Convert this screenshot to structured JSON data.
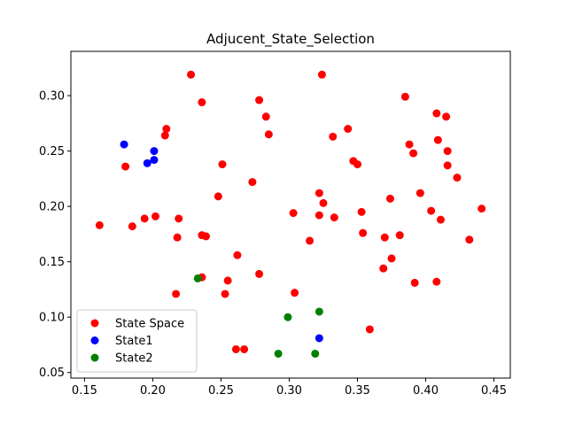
{
  "chart_data": {
    "type": "scatter",
    "title": "Adjucent_State_Selection",
    "xlabel": "",
    "ylabel": "",
    "xlim": [
      0.14,
      0.462
    ],
    "ylim": [
      0.045,
      0.34
    ],
    "xticks": [
      0.15,
      0.2,
      0.25,
      0.3,
      0.35,
      0.4,
      0.45
    ],
    "xtick_labels": [
      "0.15",
      "0.20",
      "0.25",
      "0.30",
      "0.35",
      "0.40",
      "0.45"
    ],
    "yticks": [
      0.05,
      0.1,
      0.15,
      0.2,
      0.25,
      0.3
    ],
    "ytick_labels": [
      "0.05",
      "0.10",
      "0.15",
      "0.20",
      "0.25",
      "0.30"
    ],
    "grid": false,
    "legend_position": "bottom-left",
    "series": [
      {
        "name": "State Space",
        "color": "#ff0000",
        "points": [
          [
            0.161,
            0.183
          ],
          [
            0.18,
            0.236
          ],
          [
            0.185,
            0.182
          ],
          [
            0.194,
            0.189
          ],
          [
            0.202,
            0.191
          ],
          [
            0.209,
            0.264
          ],
          [
            0.21,
            0.27
          ],
          [
            0.218,
            0.172
          ],
          [
            0.219,
            0.189
          ],
          [
            0.217,
            0.121
          ],
          [
            0.228,
            0.319
          ],
          [
            0.236,
            0.294
          ],
          [
            0.236,
            0.174
          ],
          [
            0.239,
            0.173
          ],
          [
            0.236,
            0.136
          ],
          [
            0.248,
            0.209
          ],
          [
            0.251,
            0.238
          ],
          [
            0.253,
            0.121
          ],
          [
            0.255,
            0.133
          ],
          [
            0.262,
            0.156
          ],
          [
            0.261,
            0.071
          ],
          [
            0.267,
            0.071
          ],
          [
            0.273,
            0.222
          ],
          [
            0.278,
            0.296
          ],
          [
            0.278,
            0.139
          ],
          [
            0.283,
            0.281
          ],
          [
            0.285,
            0.265
          ],
          [
            0.303,
            0.194
          ],
          [
            0.304,
            0.122
          ],
          [
            0.315,
            0.169
          ],
          [
            0.322,
            0.212
          ],
          [
            0.322,
            0.192
          ],
          [
            0.324,
            0.319
          ],
          [
            0.325,
            0.203
          ],
          [
            0.332,
            0.263
          ],
          [
            0.333,
            0.19
          ],
          [
            0.343,
            0.27
          ],
          [
            0.347,
            0.241
          ],
          [
            0.35,
            0.238
          ],
          [
            0.353,
            0.195
          ],
          [
            0.354,
            0.176
          ],
          [
            0.359,
            0.089
          ],
          [
            0.369,
            0.144
          ],
          [
            0.37,
            0.172
          ],
          [
            0.374,
            0.207
          ],
          [
            0.375,
            0.153
          ],
          [
            0.381,
            0.174
          ],
          [
            0.385,
            0.299
          ],
          [
            0.388,
            0.256
          ],
          [
            0.391,
            0.248
          ],
          [
            0.392,
            0.131
          ],
          [
            0.396,
            0.212
          ],
          [
            0.404,
            0.196
          ],
          [
            0.408,
            0.284
          ],
          [
            0.408,
            0.132
          ],
          [
            0.409,
            0.26
          ],
          [
            0.411,
            0.188
          ],
          [
            0.415,
            0.281
          ],
          [
            0.416,
            0.25
          ],
          [
            0.416,
            0.237
          ],
          [
            0.423,
            0.226
          ],
          [
            0.432,
            0.17
          ],
          [
            0.441,
            0.198
          ]
        ]
      },
      {
        "name": "State1",
        "color": "#0000ff",
        "points": [
          [
            0.179,
            0.256
          ],
          [
            0.196,
            0.239
          ],
          [
            0.201,
            0.25
          ],
          [
            0.201,
            0.242
          ],
          [
            0.322,
            0.081
          ]
        ]
      },
      {
        "name": "State2",
        "color": "#008000",
        "points": [
          [
            0.233,
            0.135
          ],
          [
            0.292,
            0.067
          ],
          [
            0.299,
            0.1
          ],
          [
            0.319,
            0.067
          ],
          [
            0.322,
            0.105
          ]
        ]
      }
    ]
  }
}
